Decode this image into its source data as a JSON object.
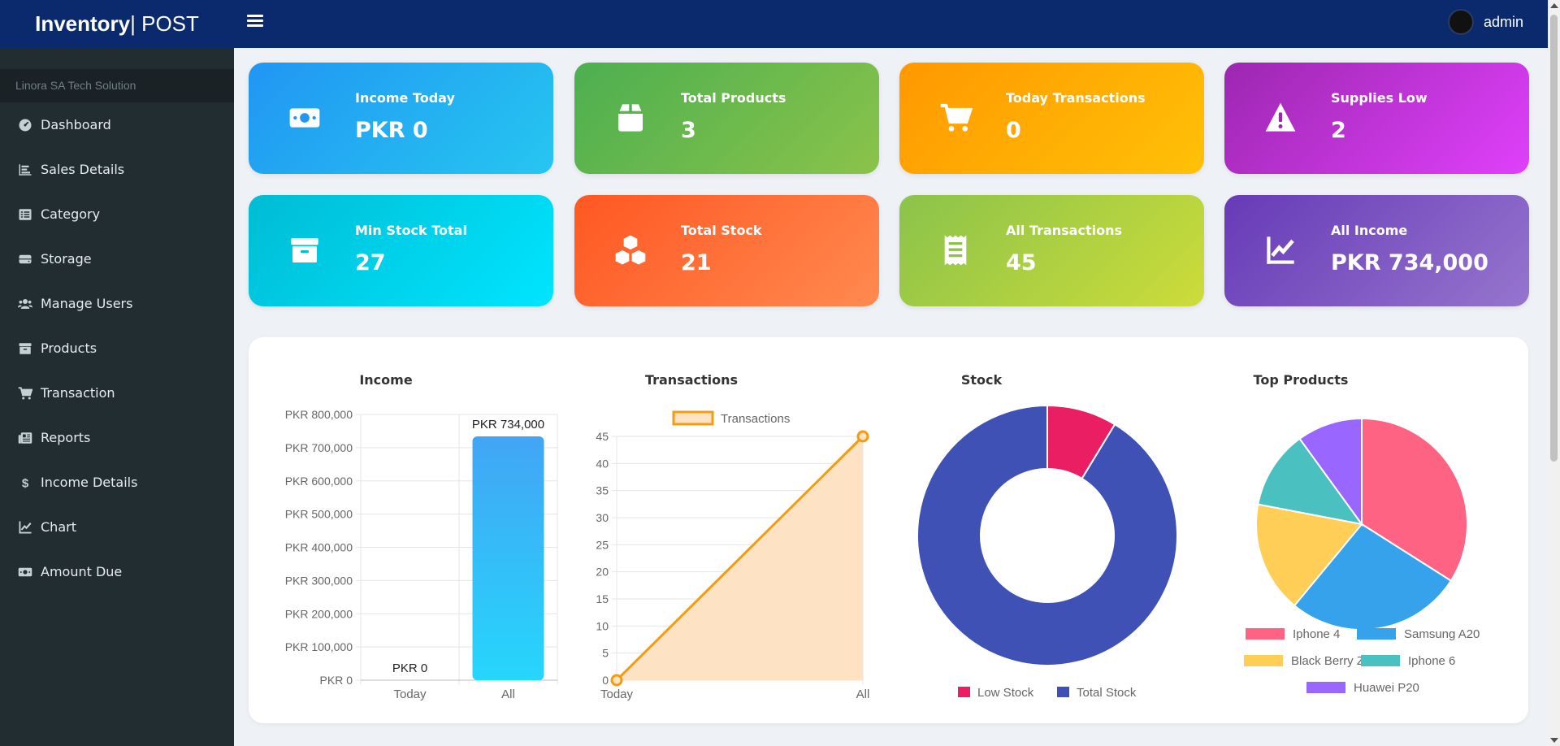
{
  "header": {
    "brand_bold": "Inventory",
    "brand_rest": " | POST",
    "user_name": "admin"
  },
  "sidebar": {
    "company": "Linora SA Tech Solution",
    "items": [
      {
        "label": "Dashboard",
        "icon": "dashboard-icon"
      },
      {
        "label": "Sales Details",
        "icon": "bar-chart-icon"
      },
      {
        "label": "Category",
        "icon": "list-icon"
      },
      {
        "label": "Storage",
        "icon": "hdd-icon"
      },
      {
        "label": "Manage Users",
        "icon": "users-icon"
      },
      {
        "label": "Products",
        "icon": "archive-icon"
      },
      {
        "label": "Transaction",
        "icon": "cart-icon"
      },
      {
        "label": "Reports",
        "icon": "newspaper-icon"
      },
      {
        "label": "Income Details",
        "icon": "dollar-icon"
      },
      {
        "label": "Chart",
        "icon": "line-chart-icon"
      },
      {
        "label": "Amount Due",
        "icon": "money-bill-icon"
      }
    ]
  },
  "cards": [
    {
      "label": "Income Today",
      "value": "PKR 0",
      "icon": "money-bill-icon",
      "colors": [
        "#2196f3",
        "#26c6f0"
      ]
    },
    {
      "label": "Total Products",
      "value": "3",
      "icon": "box-icon",
      "colors": [
        "#4caf50",
        "#8bc34a"
      ]
    },
    {
      "label": "Today Transactions",
      "value": "0",
      "icon": "cart-icon",
      "colors": [
        "#ff9800",
        "#ffc107"
      ]
    },
    {
      "label": "Supplies Low",
      "value": "2",
      "icon": "warning-icon",
      "colors": [
        "#9c27b0",
        "#e040fb"
      ]
    },
    {
      "label": "Min Stock Total",
      "value": "27",
      "icon": "archive-icon",
      "colors": [
        "#00bcd4",
        "#00e5ff"
      ]
    },
    {
      "label": "Total Stock",
      "value": "21",
      "icon": "cubes-icon",
      "colors": [
        "#ff5722",
        "#ff8a50"
      ]
    },
    {
      "label": "All Transactions",
      "value": "45",
      "icon": "receipt-icon",
      "colors": [
        "#8bc34a",
        "#cddc39"
      ]
    },
    {
      "label": "All Income",
      "value": "PKR 734,000",
      "icon": "line-chart-icon",
      "colors": [
        "#673ab7",
        "#9575cd"
      ]
    }
  ],
  "chart_data": [
    {
      "type": "bar",
      "title": "Income",
      "categories": [
        "Today",
        "All"
      ],
      "values": [
        0,
        734000
      ],
      "data_labels": [
        "PKR 0",
        "PKR 734,000"
      ],
      "y_ticks": [
        "PKR 0",
        "PKR 100,000",
        "PKR 200,000",
        "PKR 300,000",
        "PKR 400,000",
        "PKR 500,000",
        "PKR 600,000",
        "PKR 700,000",
        "PKR 800,000"
      ],
      "ylim": [
        0,
        800000
      ],
      "color": "#2ab6f6",
      "grid": true
    },
    {
      "type": "area",
      "title": "Transactions",
      "categories": [
        "Today",
        "All"
      ],
      "series": [
        {
          "name": "Transactions",
          "values": [
            0,
            45
          ]
        }
      ],
      "y_ticks": [
        "0",
        "5",
        "10",
        "15",
        "20",
        "25",
        "30",
        "35",
        "40",
        "45"
      ],
      "ylim": [
        0,
        45
      ],
      "color": "#f39c12",
      "fill": "#fde3c4",
      "legend": "top",
      "grid": true
    },
    {
      "type": "pie",
      "subtype": "doughnut",
      "title": "Stock",
      "labels": [
        "Low Stock",
        "Total Stock"
      ],
      "values": [
        2,
        21
      ],
      "colors": [
        "#e91e63",
        "#3f51b5"
      ],
      "legend": "bottom"
    },
    {
      "type": "pie",
      "title": "Top Products",
      "labels": [
        "Iphone 4",
        "Samsung A20",
        "Black Berry Z3",
        "Iphone 6",
        "Huawei P20"
      ],
      "values": [
        34,
        27,
        17,
        12,
        10
      ],
      "colors": [
        "#ff6384",
        "#36a2eb",
        "#ffce56",
        "#4bc0c0",
        "#9966ff"
      ],
      "legend": "bottom"
    }
  ]
}
